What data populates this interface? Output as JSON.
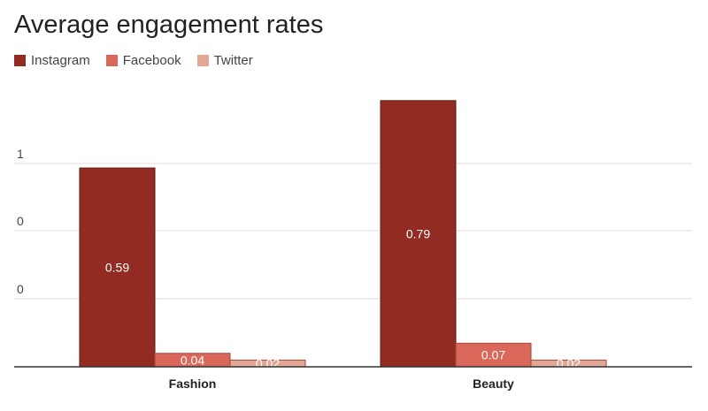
{
  "chart_data": {
    "type": "bar",
    "title": "Average engagement rates",
    "categories": [
      "Fashion",
      "Beauty"
    ],
    "series": [
      {
        "name": "Instagram",
        "values": [
          0.59,
          0.79
        ],
        "color": "#922b21"
      },
      {
        "name": "Facebook",
        "values": [
          0.04,
          0.07
        ],
        "color": "#d9685a"
      },
      {
        "name": "Twitter",
        "values": [
          0.02,
          0.02
        ],
        "color": "#e3a895"
      }
    ],
    "y_ticks": [
      "1",
      "0",
      "0"
    ],
    "xlabel": "",
    "ylabel": "",
    "ylim": [
      0,
      0.8
    ],
    "grid": true,
    "legend_position": "top-left"
  }
}
